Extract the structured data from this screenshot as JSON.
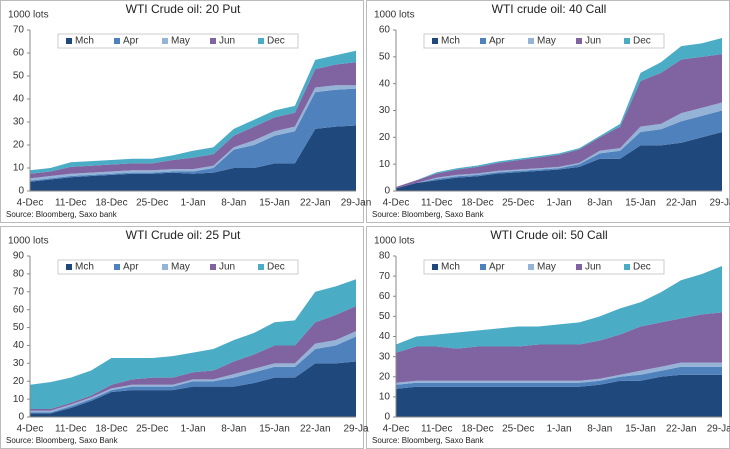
{
  "chart_data": [
    {
      "type": "area",
      "stacked": true,
      "title": "WTI Crude oil: 20 Put",
      "ylabel": "1000 lots",
      "source": "Source: Bloomberg, Saxo bank",
      "categories": [
        "4-Dec",
        null,
        "11-Dec",
        null,
        "18-Dec",
        null,
        "25-Dec",
        null,
        "1-Jan",
        null,
        "8-Jan",
        null,
        "15-Jan",
        null,
        "22-Jan",
        null,
        "29-Jan"
      ],
      "ylim": [
        0,
        70
      ],
      "yticks": [
        0,
        10,
        20,
        30,
        40,
        50,
        60,
        70
      ],
      "grid": false,
      "series": [
        {
          "name": "Mch",
          "color": "#1f497d",
          "values": [
            4,
            5,
            6,
            6.5,
            7,
            7.5,
            7.5,
            8,
            7.5,
            8,
            10,
            10,
            12,
            12,
            27,
            28,
            28.5
          ]
        },
        {
          "name": "Apr",
          "color": "#4f81bd",
          "values": [
            0.5,
            0.5,
            0.5,
            0.5,
            0.5,
            0.5,
            0.5,
            0.5,
            1,
            2,
            8,
            10,
            12,
            14,
            16,
            16,
            16
          ]
        },
        {
          "name": "May",
          "color": "#95b3d7",
          "values": [
            1,
            1,
            1,
            1,
            1,
            1,
            1,
            1,
            1,
            1,
            1,
            2,
            2,
            2,
            2,
            2,
            1.5
          ]
        },
        {
          "name": "Jun",
          "color": "#8064a2",
          "values": [
            2,
            2,
            3,
            3,
            3,
            3,
            3,
            4,
            5,
            5,
            5,
            6,
            6,
            6,
            8,
            9,
            10
          ]
        },
        {
          "name": "Dec",
          "color": "#4bacc6",
          "values": [
            1.5,
            1.5,
            2,
            2,
            2,
            2,
            2,
            2,
            3,
            3,
            3,
            3,
            3,
            3,
            4,
            4,
            5
          ]
        }
      ]
    },
    {
      "type": "area",
      "stacked": true,
      "title": "WTI crude oil: 40 Call",
      "ylabel": "1000 lots",
      "source": "Source: Bloomberg, Saxo Bank",
      "categories": [
        "4-Dec",
        null,
        "11-Dec",
        null,
        "18-Dec",
        null,
        "25-Dec",
        null,
        "1-Jan",
        null,
        "8-Jan",
        null,
        "15-Jan",
        null,
        "22-Jan",
        null,
        "29-Ja"
      ],
      "ylim": [
        0,
        60
      ],
      "yticks": [
        0,
        10,
        20,
        30,
        40,
        50,
        60
      ],
      "grid": false,
      "series": [
        {
          "name": "Mch",
          "color": "#1f497d",
          "values": [
            1,
            3,
            4,
            5,
            5.5,
            6.5,
            7,
            7.5,
            8,
            9,
            12,
            12,
            17,
            17,
            18,
            20,
            22
          ]
        },
        {
          "name": "Apr",
          "color": "#4f81bd",
          "values": [
            0,
            0,
            0.5,
            0.5,
            0.5,
            0.5,
            0.5,
            0.5,
            0.5,
            1,
            2,
            3,
            5,
            6,
            8,
            8,
            8
          ]
        },
        {
          "name": "May",
          "color": "#95b3d7",
          "values": [
            0,
            0,
            0.5,
            0.5,
            0.5,
            0.5,
            0.5,
            0.5,
            0.5,
            0.5,
            1,
            1,
            2,
            2,
            3,
            3,
            3
          ]
        },
        {
          "name": "Jun",
          "color": "#8064a2",
          "values": [
            0.5,
            1,
            1.5,
            2,
            2.5,
            3,
            3.5,
            4,
            4.5,
            5,
            5,
            8,
            17,
            19,
            20,
            19,
            18
          ]
        },
        {
          "name": "Dec",
          "color": "#4bacc6",
          "values": [
            0,
            0,
            0.5,
            0.5,
            0.5,
            0.5,
            0.5,
            0.5,
            0.5,
            0.5,
            0.5,
            1,
            3,
            4,
            5,
            5,
            6
          ]
        }
      ]
    },
    {
      "type": "area",
      "stacked": true,
      "title": "WTI Crude oil: 25 Put",
      "ylabel": "1000 lots",
      "source": "Source: Bloomberg, Saxo Bank",
      "categories": [
        "4-Dec",
        null,
        "11-Dec",
        null,
        "18-Dec",
        null,
        "25-Dec",
        null,
        "1-Jan",
        null,
        "8-Jan",
        null,
        "15-Jan",
        null,
        "22-Jan",
        null,
        "29-Ja"
      ],
      "ylim": [
        0,
        90
      ],
      "yticks": [
        0,
        10,
        20,
        30,
        40,
        50,
        60,
        70,
        80,
        90
      ],
      "grid": false,
      "series": [
        {
          "name": "Mch",
          "color": "#1f497d",
          "values": [
            2,
            2,
            5,
            9,
            14,
            15,
            15,
            15,
            17,
            17,
            17,
            19,
            22,
            22,
            30,
            30,
            31
          ]
        },
        {
          "name": "Apr",
          "color": "#4f81bd",
          "values": [
            0.5,
            0.5,
            1,
            1,
            1,
            2,
            2,
            2,
            3,
            3,
            5,
            6,
            6,
            6,
            8,
            10,
            14
          ]
        },
        {
          "name": "May",
          "color": "#95b3d7",
          "values": [
            1,
            1,
            1,
            1,
            1,
            1,
            1,
            1,
            1,
            1,
            2,
            2,
            2,
            2,
            3,
            3,
            3
          ]
        },
        {
          "name": "Jun",
          "color": "#8064a2",
          "values": [
            1,
            1,
            1,
            1,
            2,
            3,
            4,
            4,
            4,
            5,
            7,
            8,
            10,
            10,
            12,
            14,
            14
          ]
        },
        {
          "name": "Dec",
          "color": "#4bacc6",
          "values": [
            13.5,
            15,
            14,
            14,
            15,
            12,
            11,
            12,
            11,
            12,
            12,
            12,
            13,
            14,
            17,
            16,
            15
          ]
        }
      ]
    },
    {
      "type": "area",
      "stacked": true,
      "title": "WTI Crude oil: 50 Call",
      "ylabel": "1000 lots",
      "source": "Source: Bloomberg, Saxo Bank",
      "categories": [
        "4-Dec",
        null,
        "11-Dec",
        null,
        "18-Dec",
        null,
        "25-Dec",
        null,
        "1-Jan",
        null,
        "8-Jan",
        null,
        "15-Jan",
        null,
        "22-Jan",
        null,
        "29-Jan"
      ],
      "ylim": [
        0,
        80
      ],
      "yticks": [
        0,
        10,
        20,
        30,
        40,
        50,
        60,
        70,
        80
      ],
      "grid": false,
      "series": [
        {
          "name": "Mch",
          "color": "#1f497d",
          "values": [
            14,
            15,
            15,
            15,
            15,
            15,
            15,
            15,
            15,
            15,
            16,
            18,
            18,
            20,
            21,
            21,
            21
          ]
        },
        {
          "name": "Apr",
          "color": "#4f81bd",
          "values": [
            2,
            2,
            2,
            2,
            2,
            2,
            2,
            2,
            2,
            2,
            2,
            2,
            3,
            3,
            4,
            4,
            4
          ]
        },
        {
          "name": "May",
          "color": "#95b3d7",
          "values": [
            1,
            1,
            1,
            1,
            1,
            1,
            1,
            1,
            1,
            1,
            1,
            1,
            2,
            2,
            2,
            2,
            2
          ]
        },
        {
          "name": "Jun",
          "color": "#8064a2",
          "values": [
            15,
            17,
            17,
            16,
            17,
            17,
            17,
            18,
            18,
            18,
            19,
            20,
            22,
            22,
            22,
            24,
            25
          ]
        },
        {
          "name": "Dec",
          "color": "#4bacc6",
          "values": [
            4,
            5,
            6,
            8,
            8,
            9,
            10,
            9,
            10,
            11,
            12,
            13,
            12,
            15,
            19,
            20,
            23
          ]
        }
      ]
    }
  ]
}
